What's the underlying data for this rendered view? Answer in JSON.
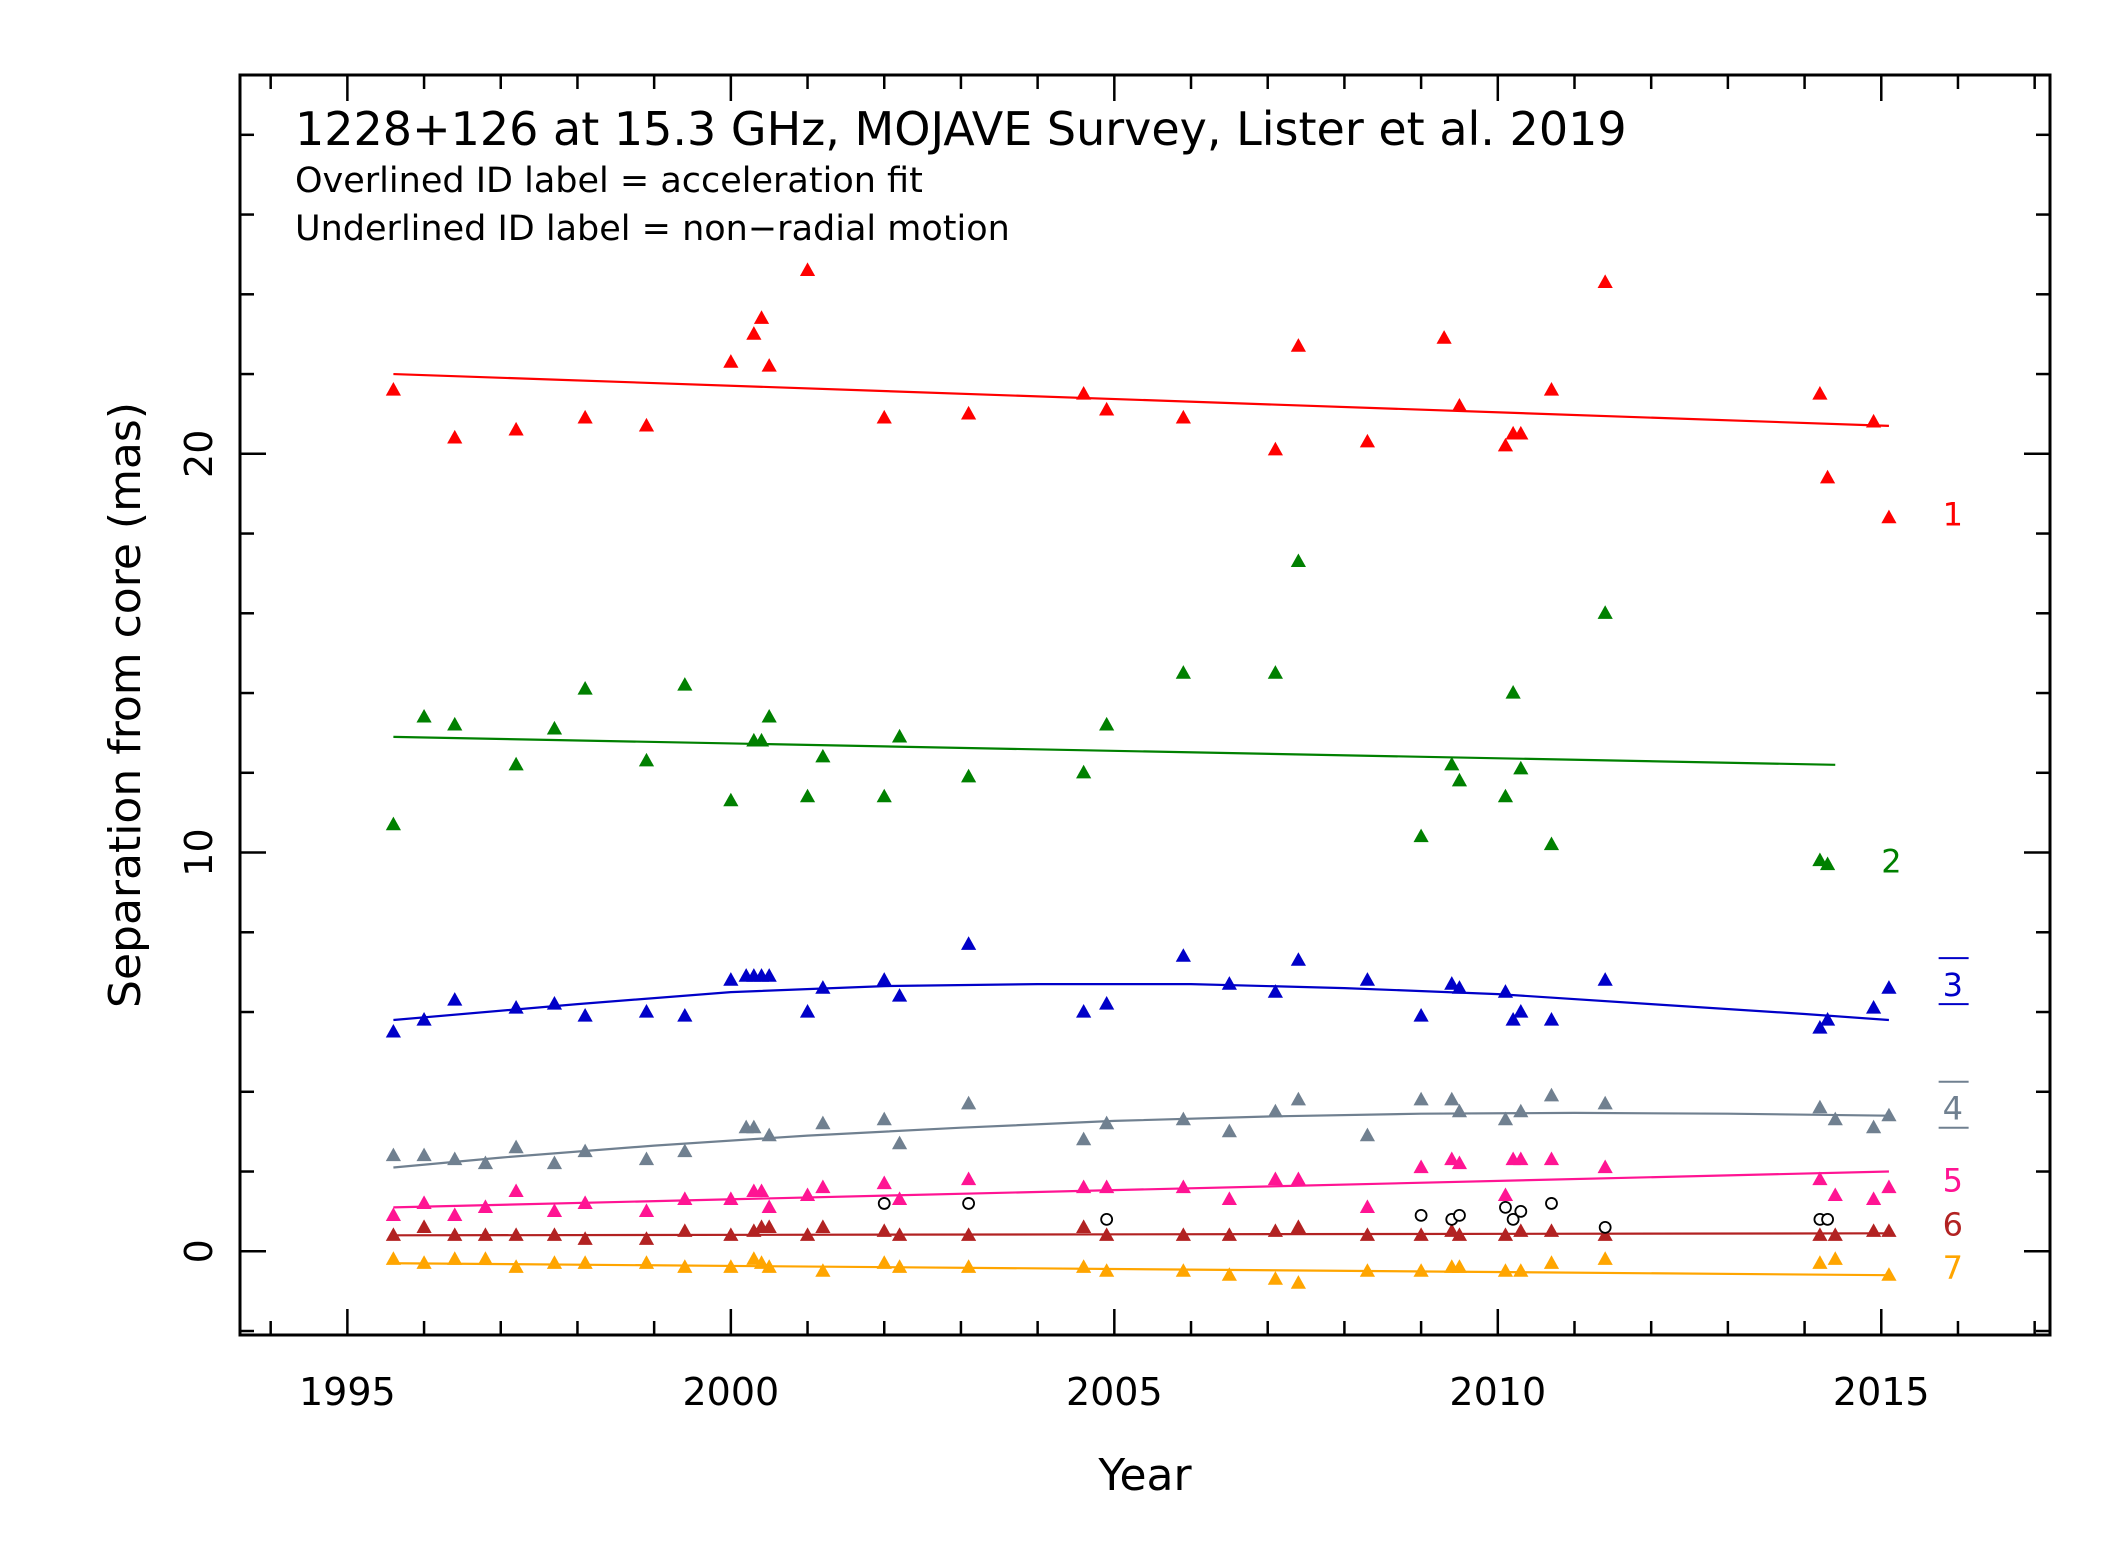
{
  "chart_data": {
    "type": "scatter",
    "title": "1228+126 at 15.3 GHz, MOJAVE Survey, Lister et al. 2019",
    "notes": [
      "Overlined ID label = acceleration fit",
      "Underlined ID label = non−radial motion"
    ],
    "xlabel": "Year",
    "ylabel": "Separation from core (mas)",
    "xlim": [
      1993.6,
      2017.2
    ],
    "ylim": [
      -2.1,
      29.5
    ],
    "xticks": [
      1995,
      2000,
      2005,
      2010,
      2015
    ],
    "yticks": [
      0,
      10,
      20
    ],
    "series": [
      {
        "name": "1",
        "color": "#ff0000",
        "marker": "triangle",
        "x": [
          1995.6,
          1996.4,
          1997.2,
          1998.1,
          1998.9,
          2000.0,
          2000.3,
          2000.4,
          2000.5,
          2001.0,
          2002.0,
          2003.1,
          2004.6,
          2004.9,
          2005.9,
          2007.1,
          2007.4,
          2008.3,
          2009.3,
          2009.5,
          2010.1,
          2010.2,
          2010.3,
          2010.7,
          2011.4,
          2014.2,
          2014.3,
          2014.9,
          2015.1
        ],
        "y": [
          21.6,
          20.4,
          20.6,
          20.9,
          20.7,
          22.3,
          23.0,
          23.4,
          22.2,
          24.6,
          20.9,
          21.0,
          21.5,
          21.1,
          20.9,
          20.1,
          22.7,
          20.3,
          22.9,
          21.2,
          20.2,
          20.5,
          20.5,
          21.6,
          24.3,
          21.5,
          19.4,
          20.8,
          18.4
        ],
        "fit": {
          "kind": "line",
          "x0": 1995.6,
          "y0": 22.0,
          "x1": 2015.1,
          "y1": 20.7
        }
      },
      {
        "name": "2",
        "color": "#008000",
        "marker": "triangle",
        "x": [
          1995.6,
          1996.0,
          1996.4,
          1997.2,
          1997.7,
          1998.1,
          1998.9,
          1999.4,
          2000.0,
          2000.3,
          2000.4,
          2000.5,
          2001.0,
          2001.2,
          2002.0,
          2002.2,
          2003.1,
          2004.6,
          2004.9,
          2005.9,
          2007.1,
          2007.4,
          2009.0,
          2009.4,
          2009.5,
          2010.1,
          2010.2,
          2010.3,
          2010.7,
          2011.4,
          2014.2,
          2014.3
        ],
        "y": [
          10.7,
          13.4,
          13.2,
          12.2,
          13.1,
          14.1,
          12.3,
          14.2,
          11.3,
          12.8,
          12.8,
          13.4,
          11.4,
          12.4,
          11.4,
          12.9,
          11.9,
          12.0,
          13.2,
          14.5,
          14.5,
          17.3,
          10.4,
          12.2,
          11.8,
          11.4,
          14.0,
          12.1,
          10.2,
          16.0,
          9.8,
          9.7
        ],
        "fit": {
          "kind": "line",
          "x0": 1995.6,
          "y0": 12.9,
          "x1": 2014.4,
          "y1": 12.2
        }
      },
      {
        "name": "3",
        "color": "#0000c8",
        "marker": "triangle",
        "x": [
          1995.6,
          1996.0,
          1996.4,
          1997.2,
          1997.7,
          1998.1,
          1998.9,
          1999.4,
          2000.0,
          2000.2,
          2000.3,
          2000.4,
          2000.5,
          2001.0,
          2001.2,
          2002.0,
          2002.2,
          2003.1,
          2004.6,
          2004.9,
          2005.9,
          2006.5,
          2007.1,
          2007.4,
          2008.3,
          2009.0,
          2009.4,
          2009.5,
          2010.1,
          2010.2,
          2010.3,
          2010.7,
          2011.4,
          2014.2,
          2014.3,
          2014.9,
          2015.1
        ],
        "y": [
          5.5,
          5.8,
          6.3,
          6.1,
          6.2,
          5.9,
          6.0,
          5.9,
          6.8,
          6.9,
          6.9,
          6.9,
          6.9,
          6.0,
          6.6,
          6.8,
          6.4,
          7.7,
          6.0,
          6.2,
          7.4,
          6.7,
          6.5,
          7.3,
          6.8,
          5.9,
          6.7,
          6.6,
          6.5,
          5.8,
          6.0,
          5.8,
          6.8,
          5.6,
          5.8,
          6.1,
          6.6
        ],
        "fit": {
          "kind": "curve",
          "points": [
            [
              1995.6,
              5.8
            ],
            [
              1998,
              6.2
            ],
            [
              2000,
              6.5
            ],
            [
              2002,
              6.65
            ],
            [
              2004,
              6.7
            ],
            [
              2006,
              6.7
            ],
            [
              2008,
              6.6
            ],
            [
              2010,
              6.45
            ],
            [
              2012,
              6.2
            ],
            [
              2014,
              5.95
            ],
            [
              2015.1,
              5.8
            ]
          ]
        }
      },
      {
        "name": "4",
        "color": "#708090",
        "marker": "triangle",
        "x": [
          1995.6,
          1996.0,
          1996.4,
          1996.8,
          1997.2,
          1997.7,
          1998.1,
          1998.9,
          1999.4,
          2000.2,
          2000.3,
          2000.5,
          2001.2,
          2002.0,
          2002.2,
          2003.1,
          2004.6,
          2004.9,
          2005.9,
          2006.5,
          2007.1,
          2007.4,
          2008.3,
          2009.0,
          2009.4,
          2009.5,
          2010.1,
          2010.3,
          2010.7,
          2011.4,
          2014.2,
          2014.4,
          2014.9,
          2015.1
        ],
        "y": [
          2.4,
          2.4,
          2.3,
          2.2,
          2.6,
          2.2,
          2.5,
          2.3,
          2.5,
          3.1,
          3.1,
          2.9,
          3.2,
          3.3,
          2.7,
          3.7,
          2.8,
          3.2,
          3.3,
          3.0,
          3.5,
          3.8,
          2.9,
          3.8,
          3.8,
          3.5,
          3.3,
          3.5,
          3.9,
          3.7,
          3.6,
          3.3,
          3.1,
          3.4
        ],
        "fit": {
          "kind": "curve",
          "points": [
            [
              1995.6,
              2.1
            ],
            [
              1997,
              2.35
            ],
            [
              1999,
              2.65
            ],
            [
              2001,
              2.9
            ],
            [
              2003,
              3.1
            ],
            [
              2005,
              3.27
            ],
            [
              2007,
              3.38
            ],
            [
              2009,
              3.45
            ],
            [
              2011,
              3.47
            ],
            [
              2013,
              3.45
            ],
            [
              2015.1,
              3.4
            ]
          ]
        }
      },
      {
        "name": "5",
        "color": "#ff1493",
        "marker": "triangle",
        "x": [
          1995.6,
          1996.0,
          1996.4,
          1996.8,
          1997.2,
          1997.7,
          1998.1,
          1998.9,
          1999.4,
          2000.0,
          2000.3,
          2000.4,
          2000.5,
          2001.0,
          2001.2,
          2002.0,
          2002.2,
          2003.1,
          2004.6,
          2004.9,
          2005.9,
          2006.5,
          2007.1,
          2007.4,
          2008.3,
          2009.0,
          2009.4,
          2009.5,
          2010.1,
          2010.2,
          2010.3,
          2010.7,
          2011.4,
          2014.2,
          2014.4,
          2014.9,
          2015.1
        ],
        "y": [
          0.9,
          1.2,
          0.9,
          1.1,
          1.5,
          1.0,
          1.2,
          1.0,
          1.3,
          1.3,
          1.5,
          1.5,
          1.1,
          1.4,
          1.6,
          1.7,
          1.3,
          1.8,
          1.6,
          1.6,
          1.6,
          1.3,
          1.8,
          1.8,
          1.1,
          2.1,
          2.3,
          2.2,
          1.4,
          2.3,
          2.3,
          2.3,
          2.1,
          1.8,
          1.4,
          1.3,
          1.6
        ],
        "fit": {
          "kind": "line",
          "x0": 1995.6,
          "y0": 1.1,
          "x1": 2015.1,
          "y1": 2.0
        }
      },
      {
        "name": "6",
        "color": "#b22222",
        "marker": "triangle",
        "x": [
          1995.6,
          1996.0,
          1996.4,
          1996.8,
          1997.2,
          1997.7,
          1998.1,
          1998.9,
          1999.4,
          2000.0,
          2000.3,
          2000.4,
          2000.5,
          2001.0,
          2001.2,
          2002.0,
          2002.2,
          2003.1,
          2004.6,
          2004.9,
          2005.9,
          2006.5,
          2007.1,
          2007.4,
          2008.3,
          2009.0,
          2009.4,
          2009.5,
          2010.1,
          2010.3,
          2010.7,
          2011.4,
          2014.2,
          2014.4,
          2014.9,
          2015.1
        ],
        "y": [
          0.4,
          0.6,
          0.4,
          0.4,
          0.4,
          0.4,
          0.3,
          0.3,
          0.5,
          0.4,
          0.5,
          0.6,
          0.6,
          0.4,
          0.6,
          0.5,
          0.4,
          0.4,
          0.6,
          0.4,
          0.4,
          0.4,
          0.5,
          0.6,
          0.4,
          0.4,
          0.5,
          0.4,
          0.4,
          0.5,
          0.5,
          0.4,
          0.4,
          0.4,
          0.5,
          0.5
        ],
        "fit": {
          "kind": "line",
          "x0": 1995.6,
          "y0": 0.4,
          "x1": 2015.1,
          "y1": 0.45
        }
      },
      {
        "name": "7",
        "color": "#ffa500",
        "marker": "triangle",
        "x": [
          1995.6,
          1996.0,
          1996.4,
          1996.8,
          1997.2,
          1997.7,
          1998.1,
          1998.9,
          1999.4,
          2000.0,
          2000.3,
          2000.4,
          2000.5,
          2001.2,
          2002.0,
          2002.2,
          2003.1,
          2004.6,
          2004.9,
          2005.9,
          2006.5,
          2007.1,
          2007.4,
          2008.3,
          2009.0,
          2009.4,
          2009.5,
          2010.1,
          2010.3,
          2010.7,
          2011.4,
          2014.2,
          2014.4,
          2015.1
        ],
        "y": [
          -0.2,
          -0.3,
          -0.2,
          -0.2,
          -0.4,
          -0.3,
          -0.3,
          -0.3,
          -0.4,
          -0.4,
          -0.2,
          -0.3,
          -0.4,
          -0.5,
          -0.3,
          -0.4,
          -0.4,
          -0.4,
          -0.5,
          -0.5,
          -0.6,
          -0.7,
          -0.8,
          -0.5,
          -0.5,
          -0.4,
          -0.4,
          -0.5,
          -0.5,
          -0.3,
          -0.2,
          -0.3,
          -0.2,
          -0.6
        ],
        "fit": {
          "kind": "line",
          "x0": 1995.6,
          "y0": -0.3,
          "x1": 2015.1,
          "y1": -0.6
        }
      },
      {
        "name": "",
        "color": "#000000",
        "marker": "open-circle",
        "x": [
          2002.0,
          2003.1,
          2004.9,
          2009.0,
          2009.4,
          2009.5,
          2010.1,
          2010.2,
          2010.3,
          2010.7,
          2011.4,
          2014.2,
          2014.3
        ],
        "y": [
          1.2,
          1.2,
          0.8,
          0.9,
          0.8,
          0.9,
          1.1,
          0.8,
          1.0,
          1.2,
          0.6,
          0.8,
          0.8
        ]
      }
    ],
    "id_labels": [
      {
        "text": "1",
        "color": "#ff0000",
        "x": 2015.8,
        "y": 18.5,
        "deco": ""
      },
      {
        "text": "2",
        "color": "#008000",
        "x": 2015.0,
        "y": 9.8,
        "deco": ""
      },
      {
        "text": "3",
        "color": "#0000c8",
        "x": 2015.8,
        "y": 6.7,
        "deco": "both"
      },
      {
        "text": "4",
        "color": "#708090",
        "x": 2015.8,
        "y": 3.6,
        "deco": "both"
      },
      {
        "text": "5",
        "color": "#ff1493",
        "x": 2015.8,
        "y": 1.8,
        "deco": ""
      },
      {
        "text": "6",
        "color": "#b22222",
        "x": 2015.8,
        "y": 0.7,
        "deco": ""
      },
      {
        "text": "7",
        "color": "#ffa500",
        "x": 2015.8,
        "y": -0.4,
        "deco": ""
      }
    ],
    "grid": false,
    "legend": "none"
  }
}
